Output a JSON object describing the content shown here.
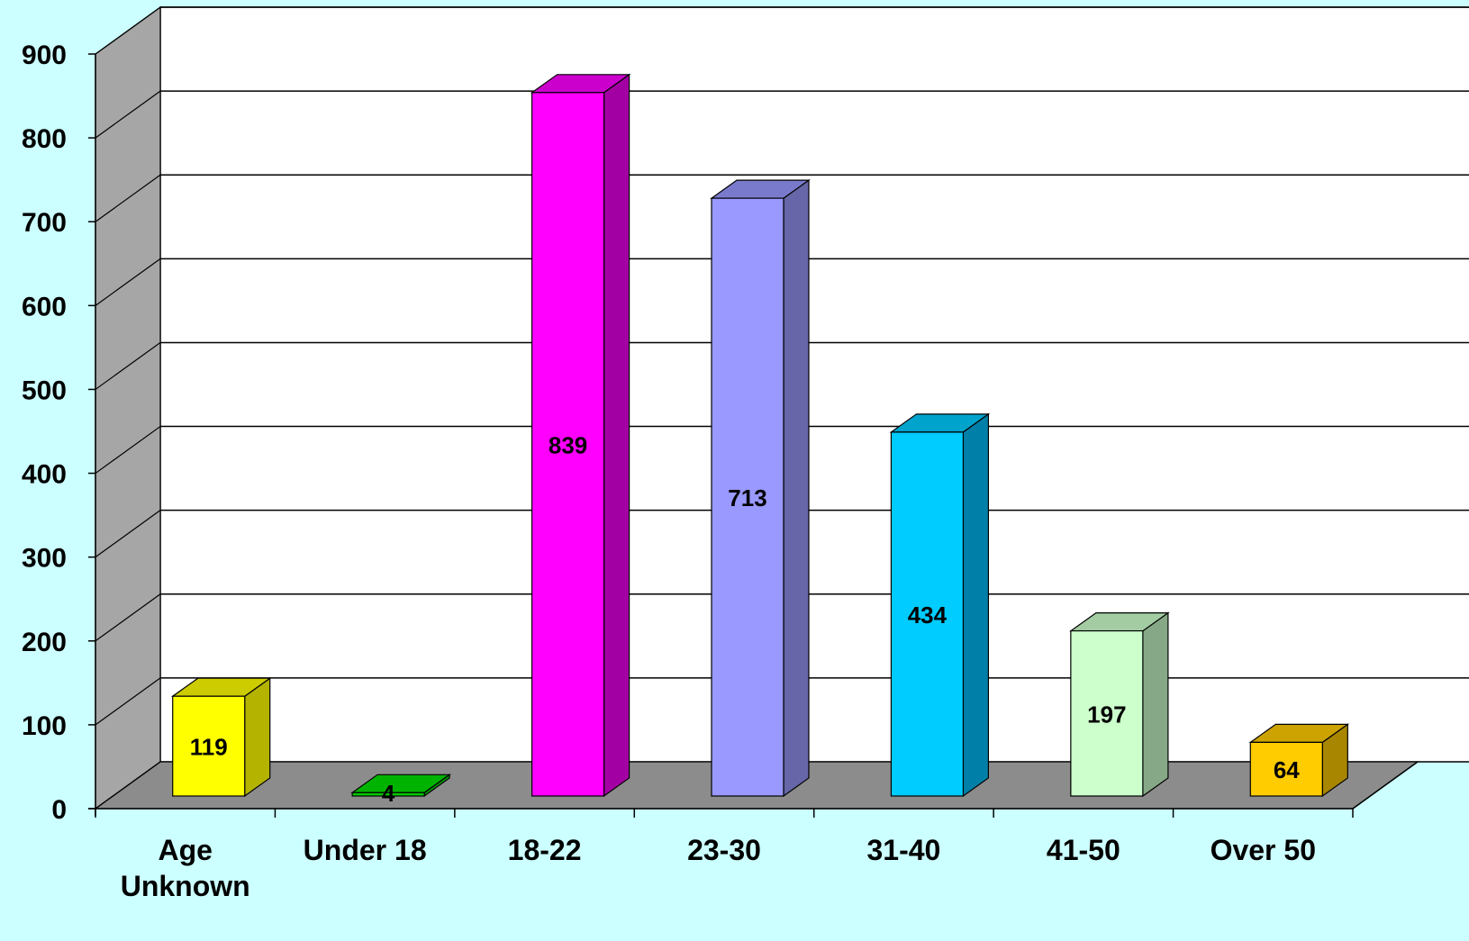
{
  "chart_data": {
    "type": "bar",
    "categories": [
      "Age Unknown",
      "Under 18",
      "18-22",
      "23-30",
      "31-40",
      "41-50",
      "Over 50"
    ],
    "category_lines": [
      [
        "Age",
        "Unknown"
      ],
      [
        "Under 18"
      ],
      [
        "18-22"
      ],
      [
        "23-30"
      ],
      [
        "31-40"
      ],
      [
        "41-50"
      ],
      [
        "Over 50"
      ]
    ],
    "values": [
      119,
      4,
      839,
      713,
      434,
      197,
      64
    ],
    "data_labels": [
      "119",
      "4",
      "839",
      "713",
      "434",
      "197",
      "64"
    ],
    "yticks": [
      0,
      100,
      200,
      300,
      400,
      500,
      600,
      700,
      800,
      900
    ],
    "ylim": [
      0,
      900
    ],
    "grid": true,
    "legend": "none",
    "three_d": true,
    "title": "",
    "xlabel": "",
    "ylabel": ""
  },
  "colors": {
    "background": "#ccffff",
    "plot_back": "#ffffff",
    "side_wall": "#a6a6a6",
    "floor": "#8c8c8c",
    "bars": [
      {
        "front": "#ffff00",
        "side": "#b3b300",
        "top": "#cccc00"
      },
      {
        "front": "#00cc00",
        "side": "#009900",
        "top": "#00b300"
      },
      {
        "front": "#ff00ff",
        "side": "#a300a3",
        "top": "#cc00cc"
      },
      {
        "front": "#9999ff",
        "side": "#6666a8",
        "top": "#7a7acc"
      },
      {
        "front": "#00ccff",
        "side": "#0080a8",
        "top": "#00a3cc"
      },
      {
        "front": "#ccffcc",
        "side": "#86a886",
        "top": "#a3cca3"
      },
      {
        "front": "#ffcc00",
        "side": "#a88600",
        "top": "#cca300"
      }
    ]
  }
}
